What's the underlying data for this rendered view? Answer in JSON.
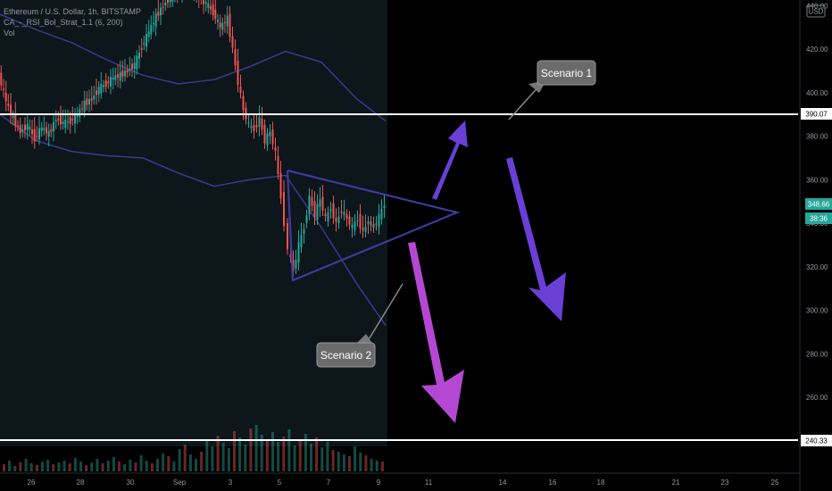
{
  "legend": {
    "title": "Ethereum / U.S. Dollar, 1h, BITSTAMP",
    "indicator": "CA_-_RSI_Bol_Strat_1.1 (6, 200)",
    "volume": "Vol"
  },
  "currency_badge": "USD",
  "colors": {
    "background": "#000000",
    "up_candle": "#26a69a",
    "down_candle": "#ef5350",
    "band_line": "#3b3a8c",
    "triangle": "#3e3a9c",
    "arrow_scenario1": "#6a3fd6",
    "arrow_scenario2": "#b548d2",
    "price_tag": "#26a69a"
  },
  "chart_data": {
    "type": "line",
    "title": "Ethereum / U.S. Dollar, 1h, BITSTAMP",
    "ylim": [
      232,
      452
    ],
    "y_ticks": [
      260,
      280,
      300,
      320,
      340,
      360,
      380,
      400,
      420,
      440
    ],
    "y_tick_labels": [
      "260.00",
      "280.00",
      "300.00",
      "320.00",
      "340.00",
      "360.00",
      "380.00",
      "400.00",
      "420.00",
      "440.00"
    ],
    "x_tick_labels": [
      "26",
      "28",
      "30",
      "Sep",
      "3",
      "5",
      "7",
      "9",
      "11",
      "14",
      "16",
      "18",
      "21",
      "23",
      "25"
    ],
    "close_series": [
      [
        0,
        408
      ],
      [
        8,
        396
      ],
      [
        16,
        388
      ],
      [
        24,
        382
      ],
      [
        32,
        385
      ],
      [
        40,
        379
      ],
      [
        48,
        384
      ],
      [
        56,
        381
      ],
      [
        64,
        388
      ],
      [
        72,
        386
      ],
      [
        80,
        387
      ],
      [
        88,
        390
      ],
      [
        96,
        395
      ],
      [
        104,
        397
      ],
      [
        112,
        402
      ],
      [
        120,
        404
      ],
      [
        128,
        407
      ],
      [
        136,
        408
      ],
      [
        144,
        410
      ],
      [
        152,
        413
      ],
      [
        160,
        421
      ],
      [
        168,
        428
      ],
      [
        176,
        435
      ],
      [
        184,
        440
      ],
      [
        192,
        444
      ],
      [
        200,
        447
      ],
      [
        208,
        450
      ],
      [
        216,
        447
      ],
      [
        224,
        444
      ],
      [
        232,
        441
      ],
      [
        240,
        437
      ],
      [
        248,
        430
      ],
      [
        256,
        434
      ],
      [
        262,
        420
      ],
      [
        268,
        405
      ],
      [
        274,
        392
      ],
      [
        280,
        385
      ],
      [
        286,
        383
      ],
      [
        292,
        388
      ],
      [
        298,
        378
      ],
      [
        304,
        382
      ],
      [
        310,
        372
      ],
      [
        316,
        352
      ],
      [
        320,
        340
      ],
      [
        324,
        328
      ],
      [
        330,
        318
      ],
      [
        336,
        330
      ],
      [
        342,
        338
      ],
      [
        348,
        352
      ],
      [
        354,
        344
      ],
      [
        360,
        351
      ],
      [
        366,
        342
      ],
      [
        372,
        347
      ],
      [
        378,
        340
      ],
      [
        384,
        346
      ],
      [
        390,
        342
      ],
      [
        396,
        338
      ],
      [
        402,
        342
      ],
      [
        408,
        336
      ],
      [
        414,
        341
      ],
      [
        420,
        338
      ],
      [
        426,
        343
      ],
      [
        432,
        348.66
      ]
    ],
    "upper_band": [
      [
        0,
        436
      ],
      [
        40,
        429
      ],
      [
        80,
        423
      ],
      [
        120,
        415
      ],
      [
        160,
        408
      ],
      [
        200,
        404
      ],
      [
        240,
        406
      ],
      [
        280,
        412
      ],
      [
        320,
        419
      ],
      [
        360,
        414
      ],
      [
        400,
        397
      ],
      [
        432,
        387
      ]
    ],
    "lower_band": [
      [
        0,
        390
      ],
      [
        40,
        378
      ],
      [
        80,
        373
      ],
      [
        120,
        371
      ],
      [
        160,
        370
      ],
      [
        200,
        363
      ],
      [
        240,
        357
      ],
      [
        280,
        360
      ],
      [
        320,
        362
      ],
      [
        360,
        338
      ],
      [
        400,
        312
      ],
      [
        432,
        293
      ]
    ],
    "volume_heights": [
      8,
      12,
      6,
      10,
      14,
      9,
      7,
      11,
      13,
      8,
      10,
      12,
      9,
      15,
      11,
      7,
      10,
      14,
      9,
      12,
      16,
      11,
      8,
      13,
      10,
      18,
      12,
      9,
      14,
      20,
      17,
      11,
      25,
      30,
      19,
      14,
      22,
      35,
      28,
      40,
      32,
      26,
      45,
      38,
      30,
      48,
      52,
      41,
      36,
      44,
      33,
      39,
      47,
      29,
      35,
      42,
      31,
      38,
      27,
      33,
      24,
      22,
      19,
      17,
      28,
      21,
      18,
      14,
      12,
      11
    ],
    "horizontal_levels": [
      {
        "price": 390.07,
        "label": "390.07"
      },
      {
        "price": 240.33,
        "label": "240.33"
      }
    ],
    "last_price_label": "348.66",
    "countdown_label": "38:36",
    "annotations": [
      "Scenario 1",
      "Scenario 2"
    ]
  },
  "annotations": {
    "scenario1": "Scenario 1",
    "scenario2": "Scenario 2"
  }
}
